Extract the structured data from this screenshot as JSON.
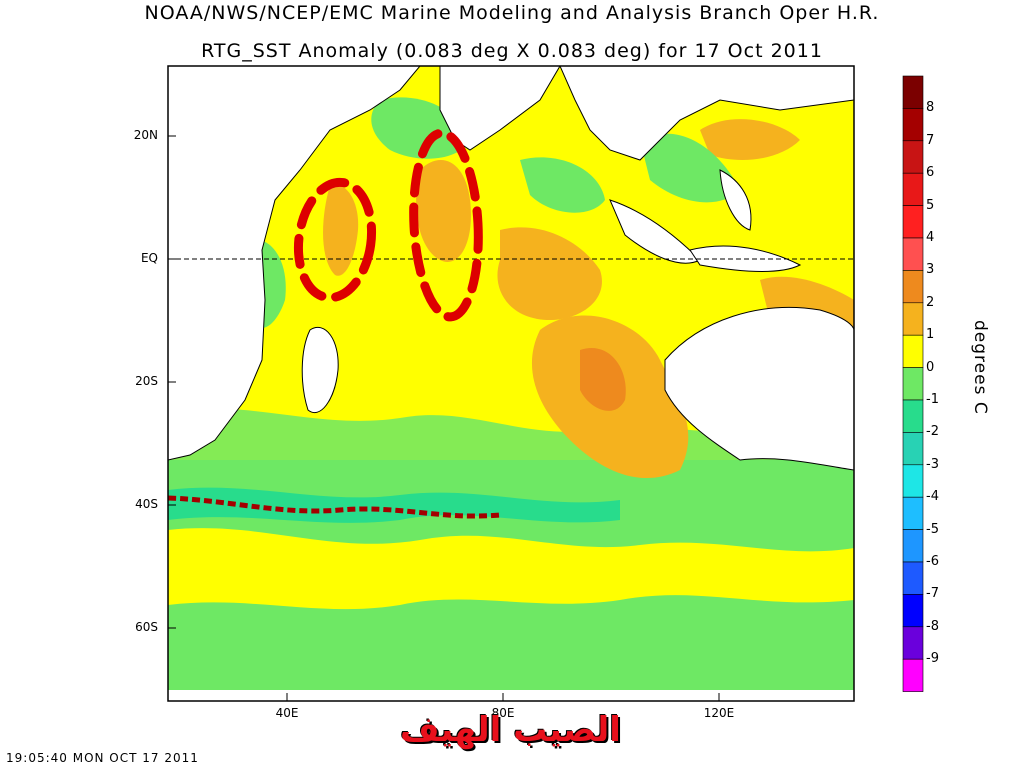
{
  "header": {
    "title_line1": "NOAA/NWS/NCEP/EMC Marine Modeling and Analysis Branch Oper H.R.",
    "title_line2": "RTG_SST Anomaly (0.083 deg X 0.083 deg) for 17 Oct 2011"
  },
  "map": {
    "latitude_labels": [
      "20N",
      "EQ",
      "20S",
      "40S",
      "60S"
    ],
    "longitude_labels": [
      "40E",
      "80E",
      "120E"
    ],
    "equator_line": "dashed",
    "region": "Indian Ocean"
  },
  "colorbar": {
    "units_label": "degrees C",
    "tick_labels": [
      "8",
      "7",
      "6",
      "5",
      "4",
      "3",
      "2",
      "1",
      "0",
      "-1",
      "-2",
      "-3",
      "-4",
      "-5",
      "-6",
      "-7",
      "-8",
      "-9"
    ],
    "colors": [
      "#7b0000",
      "#a40000",
      "#c81414",
      "#e81818",
      "#ff2020",
      "#ff5050",
      "#ee8a1e",
      "#f5b21e",
      "#ffff00",
      "#6ee864",
      "#28dc8c",
      "#28d2b4",
      "#1ee6e6",
      "#1ebeff",
      "#1e96ff",
      "#1e5aff",
      "#0000ff",
      "#6a00dc",
      "#ff00ff"
    ]
  },
  "annotations": {
    "ellipse_color": "#dd0000",
    "ellipse_count": 2
  },
  "footer": {
    "timestamp": "19:05:40  MON OCT 17 2011",
    "watermark_text": "الصيب الهيف"
  },
  "palette": {
    "land": "#ffffff",
    "warm_anomaly": "#f5b21e",
    "neutral_anomaly": "#ffff00",
    "cool_anomaly": "#6ee864"
  }
}
